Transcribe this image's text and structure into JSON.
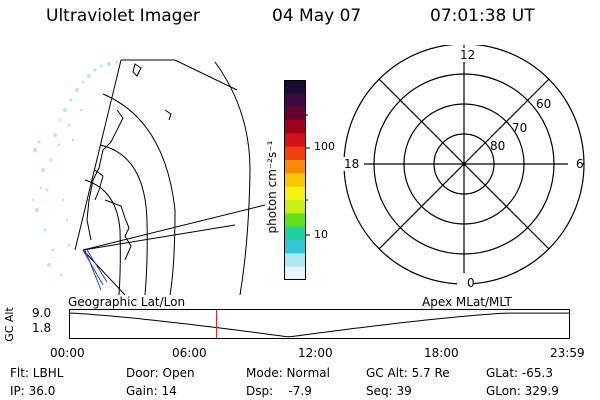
{
  "header": {
    "instrument": "Ultraviolet Imager",
    "date": "04 May 07",
    "time": "07:01:38 UT"
  },
  "colorbar": {
    "unit_label": "photon cm⁻²s⁻¹",
    "ticks": [
      "100",
      "10"
    ],
    "colors": [
      "#1a0a2e",
      "#3a0a40",
      "#6a0030",
      "#a00018",
      "#d4101a",
      "#f04010",
      "#f88a08",
      "#f8c808",
      "#f8f010",
      "#c8f018",
      "#60e020",
      "#20d0a0",
      "#30c8d8",
      "#b0e8f0",
      "#e8f6fb"
    ]
  },
  "polar_plot": {
    "mlt_labels": [
      "12",
      "18",
      "6",
      "0"
    ],
    "lat_labels": [
      "60",
      "70",
      "80"
    ]
  },
  "map": {
    "left_label": "Geographic Lat/Lon",
    "right_label": "Apex MLat/MLT"
  },
  "altitude_plot": {
    "axis_title": "GC Alt",
    "y_ticks": [
      "9.0",
      "1.8"
    ],
    "x_ticks": [
      "00:00",
      "06:00",
      "12:00",
      "18:00",
      "23:59"
    ],
    "current_time_hours": 7.03
  },
  "status": {
    "filter": "Flt: LBHL",
    "ip": "IP: 36.0",
    "door": "Door: Open",
    "gain": "Gain: 14",
    "mode": "Mode: Normal",
    "dsp": "Dsp:    -7.9",
    "gc_alt": "GC Alt: 5.7 Re",
    "seq": "Seq: 39",
    "glat": "GLat: -65.3",
    "glon": "GLon: 329.9"
  }
}
